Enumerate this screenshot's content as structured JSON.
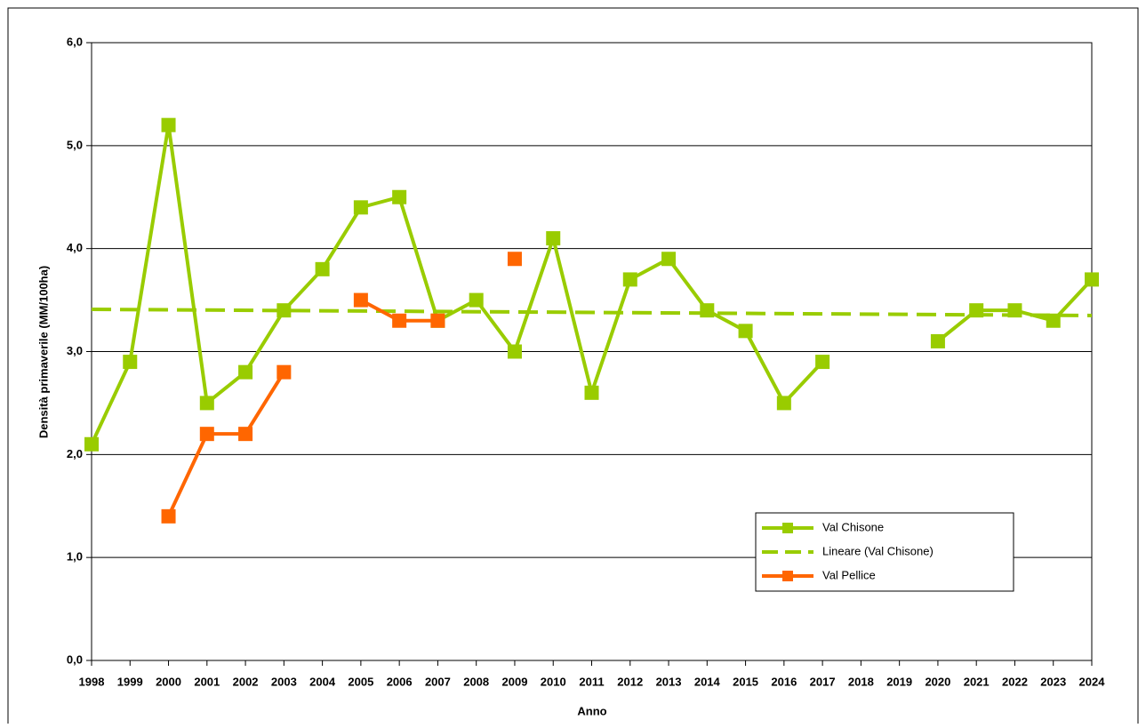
{
  "chart_data": {
    "type": "line",
    "x_label": "Anno",
    "y_label": "Densità primaverile (MM/100ha)",
    "categories": [
      "1998",
      "1999",
      "2000",
      "2001",
      "2002",
      "2003",
      "2004",
      "2005",
      "2006",
      "2007",
      "2008",
      "2009",
      "2010",
      "2011",
      "2012",
      "2013",
      "2014",
      "2015",
      "2016",
      "2017",
      "2018",
      "2019",
      "2020",
      "2021",
      "2022",
      "2023",
      "2024"
    ],
    "series": [
      {
        "name": "Val Chisone",
        "color": "#99cc00",
        "values": [
          2.1,
          2.9,
          5.2,
          2.5,
          2.8,
          3.4,
          3.8,
          4.4,
          4.5,
          3.3,
          3.5,
          3.0,
          4.1,
          2.6,
          3.7,
          3.9,
          3.4,
          3.2,
          2.5,
          2.9,
          null,
          null,
          3.1,
          3.4,
          3.4,
          3.3,
          3.7
        ]
      },
      {
        "name": "Val Pellice",
        "color": "#ff6600",
        "values": [
          null,
          null,
          1.4,
          2.2,
          2.2,
          2.8,
          null,
          3.5,
          3.3,
          3.3,
          null,
          3.9,
          null,
          null,
          null,
          null,
          null,
          null,
          null,
          null,
          null,
          null,
          null,
          null,
          null,
          null,
          null
        ]
      }
    ],
    "trendline": {
      "name": "Lineare (Val Chisone)",
      "color": "#99cc00",
      "start": 3.41,
      "end": 3.35
    },
    "ylim": [
      0,
      6
    ],
    "yticks": [
      {
        "value": 0,
        "label": "0,0"
      },
      {
        "value": 1,
        "label": "1,0"
      },
      {
        "value": 2,
        "label": "2,0"
      },
      {
        "value": 3,
        "label": "3,0"
      },
      {
        "value": 4,
        "label": "4,0"
      },
      {
        "value": 5,
        "label": "5,0"
      },
      {
        "value": 6,
        "label": "6,0"
      }
    ],
    "grid": true
  }
}
